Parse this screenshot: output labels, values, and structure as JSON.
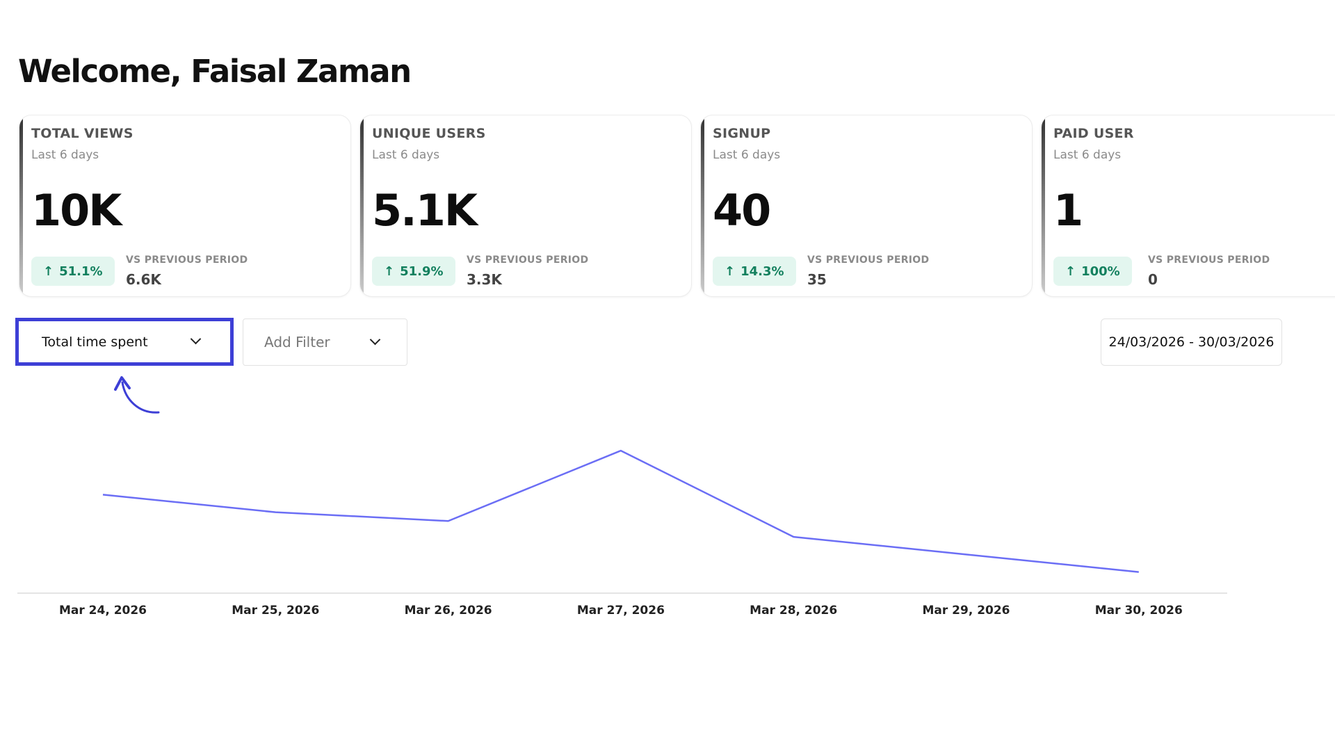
{
  "header": {
    "title": "Welcome, Faisal Zaman"
  },
  "cards": [
    {
      "title": "TOTAL VIEWS",
      "subtitle": "Last 6 days",
      "value": "10K",
      "change": "51.1%",
      "trend": "up",
      "vs_label": "VS PREVIOUS PERIOD",
      "previous": "6.6K"
    },
    {
      "title": "UNIQUE USERS",
      "subtitle": "Last 6 days",
      "value": "5.1K",
      "change": "51.9%",
      "trend": "up",
      "vs_label": "VS PREVIOUS PERIOD",
      "previous": "3.3K"
    },
    {
      "title": "SIGNUP",
      "subtitle": "Last 6 days",
      "value": "40",
      "change": "14.3%",
      "trend": "up",
      "vs_label": "VS PREVIOUS PERIOD",
      "previous": "35"
    },
    {
      "title": "PAID USER",
      "subtitle": "Last 6 days",
      "value": "1",
      "change": "100%",
      "trend": "up",
      "vs_label": "VS PREVIOUS PERIOD",
      "previous": "0"
    }
  ],
  "controls": {
    "metric_select": "Total time spent",
    "filter_placeholder": "Add Filter",
    "date_range": "24/03/2026 - 30/03/2026"
  },
  "colors": {
    "accent": "#3d3fd6",
    "line": "#6b6ef5",
    "positive": "#13805e",
    "positive_bg": "#e3f6ef"
  },
  "annotation": {
    "icon": "curved-arrow-pointing-to-metric-select"
  },
  "chart_data": {
    "type": "line",
    "categories": [
      "Mar 24, 2026",
      "Mar 25, 2026",
      "Mar 26, 2026",
      "Mar 27, 2026",
      "Mar 28, 2026",
      "Mar 29, 2026",
      "Mar 30, 2026"
    ],
    "series": [
      {
        "values": [
          56,
          46,
          41,
          81,
          32,
          22,
          12
        ]
      }
    ],
    "ylim": [
      0,
      100
    ],
    "grid": false,
    "yaxis_visible": false
  }
}
